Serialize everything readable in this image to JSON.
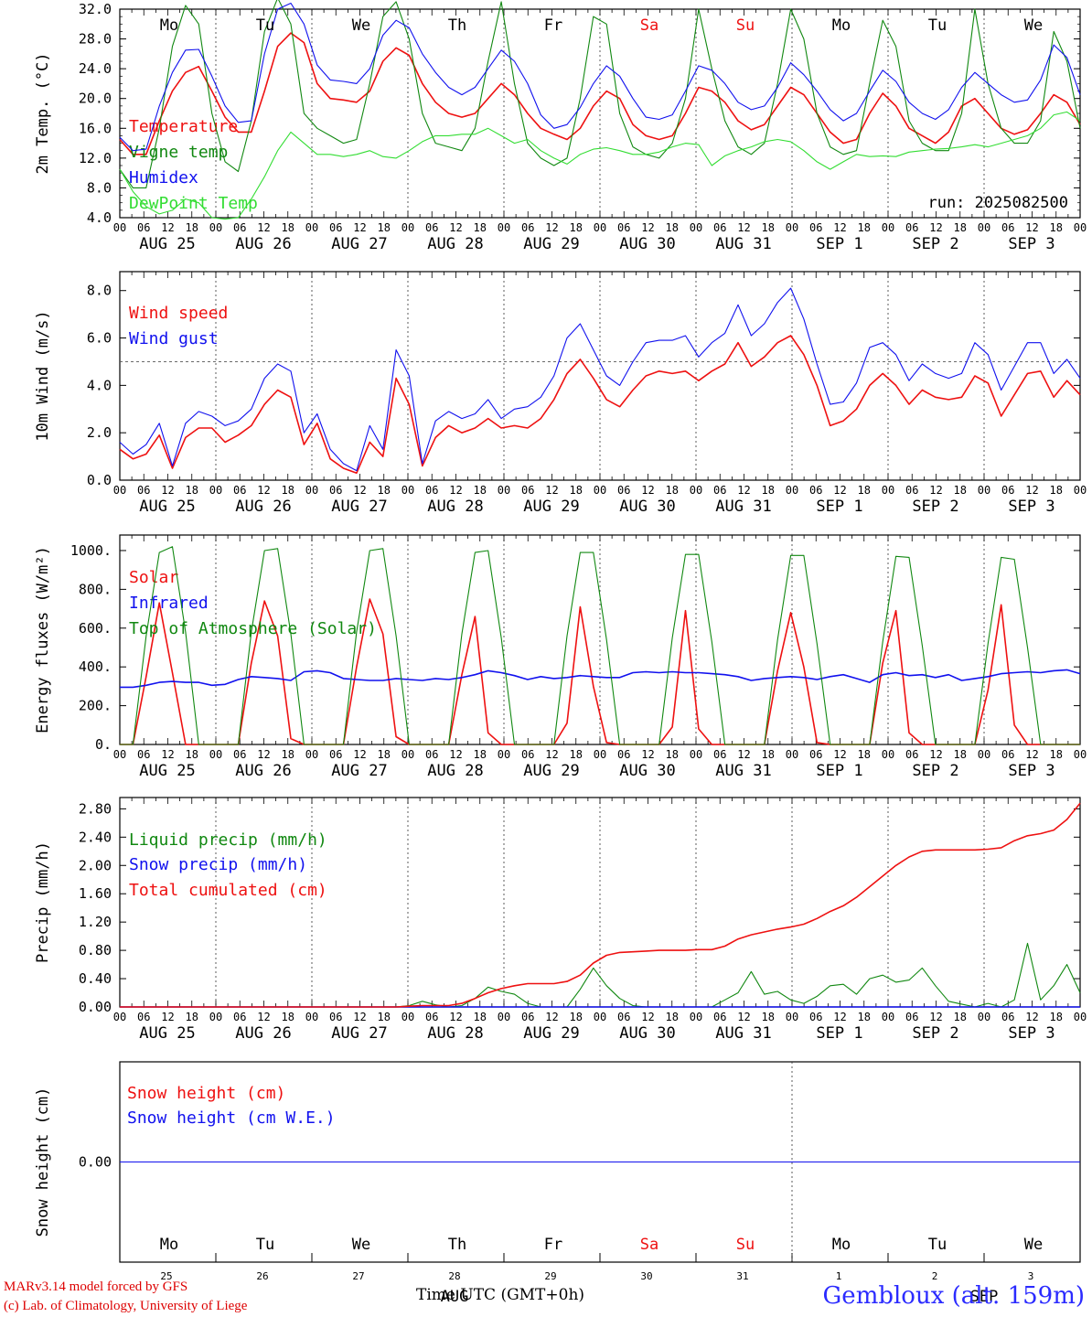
{
  "run_label": "run: 2025082500",
  "time_axis_title": "Time UTC (GMT+0h)",
  "credit_line1": "MARv3.14 model forced by GFS",
  "credit_line2": "(c) Lab. of Climatology, University of Liege",
  "station_label": "Gembloux (alt. 159m)",
  "hour_ticks": [
    "00",
    "06",
    "12",
    "18"
  ],
  "day_labels": [
    "AUG 25",
    "AUG 26",
    "AUG 27",
    "AUG 28",
    "AUG 29",
    "AUG 30",
    "AUG 31",
    "SEP  1",
    "SEP  2",
    "SEP  3"
  ],
  "weekdays": [
    "Mo",
    "Tu",
    "We",
    "Th",
    "Fr",
    "Sa",
    "Su",
    "Mo",
    "Tu",
    "We"
  ],
  "weekend_flags": [
    false,
    false,
    false,
    false,
    false,
    true,
    true,
    false,
    false,
    false
  ],
  "bottom_day_numbers": [
    "25",
    "26",
    "27",
    "28",
    "29",
    "30",
    "31",
    "1",
    "2",
    "3"
  ],
  "bottom_month_labels": [
    "AUG",
    "SEP"
  ],
  "colors": {
    "red": "#ee1111",
    "green": "#118811",
    "blue": "#1111ee",
    "lightgreen": "#33dd33",
    "gray": "#444444"
  },
  "chart_data": [
    {
      "type": "line",
      "ylabel": "2m Temp. (°C)",
      "ylim": [
        4,
        32
      ],
      "yticks": [
        "4.0",
        "8.0",
        "12.0",
        "16.0",
        "20.0",
        "24.0",
        "28.0",
        "32.0"
      ],
      "ytick_values": [
        4,
        8,
        12,
        16,
        20,
        24,
        28,
        32
      ],
      "x_unit": "hours since AUG 25 00 UTC (3-hourly)",
      "series": [
        {
          "name": "Temperature",
          "color": "red",
          "values": [
            14.5,
            12.5,
            12.5,
            17,
            21,
            23.5,
            24.3,
            21,
            17.5,
            15.5,
            15.5,
            21,
            27,
            28.8,
            27.5,
            22,
            20,
            19.8,
            19.5,
            21,
            25,
            26.8,
            25.8,
            22,
            19.5,
            18,
            17.5,
            18,
            20,
            22,
            20.5,
            18,
            16,
            15.2,
            14.5,
            16,
            19,
            21,
            20,
            16.5,
            15,
            14.5,
            15,
            18,
            21.5,
            21,
            19.5,
            17,
            15.8,
            16.5,
            19,
            21.5,
            20.5,
            18,
            15.5,
            14,
            14.5,
            18,
            20.7,
            19,
            16,
            15,
            14,
            15.5,
            19,
            20,
            18,
            16,
            15.2,
            15.8,
            18,
            20.5,
            19.5,
            16.5
          ]
        },
        {
          "name": "Vigne temp",
          "color": "green",
          "values": [
            10.5,
            8,
            8,
            16,
            27,
            32.5,
            30,
            18,
            11.5,
            10.2,
            17,
            29,
            33.5,
            30,
            18,
            16,
            15,
            14,
            14.5,
            22,
            31,
            33,
            28,
            18,
            14,
            13.5,
            13,
            16,
            25,
            33,
            22,
            14,
            12,
            11,
            12,
            20,
            31,
            30,
            18,
            13.5,
            12.5,
            12,
            14,
            20,
            32,
            24,
            17,
            13.5,
            12.5,
            14,
            22,
            32,
            28,
            18,
            13.5,
            12.5,
            13,
            22,
            30.5,
            27,
            17,
            14,
            13,
            13,
            18,
            32,
            22,
            16,
            14,
            14,
            17,
            29,
            25,
            16
          ]
        },
        {
          "name": "Humidex",
          "color": "blue",
          "values": [
            14.8,
            13,
            13.2,
            19,
            23.5,
            26.5,
            26.6,
            23,
            19,
            16.8,
            17,
            26,
            32,
            32.8,
            30,
            24.5,
            22.5,
            22.3,
            22,
            24,
            28.5,
            30.5,
            29.5,
            26,
            23.5,
            21.5,
            20.5,
            21.5,
            24,
            26.5,
            25,
            22,
            17.8,
            16,
            16.5,
            18.8,
            22,
            24.4,
            23,
            20,
            17.5,
            17.2,
            17.8,
            21,
            24.4,
            23.8,
            22,
            19.5,
            18.5,
            19,
            21.5,
            24.8,
            23.2,
            21,
            18.5,
            17,
            18,
            21,
            23.8,
            22.3,
            19.5,
            18,
            17.2,
            18.5,
            21.5,
            23.5,
            22,
            20.5,
            19.5,
            19.8,
            22.5,
            27.2,
            25.5,
            20.5
          ]
        },
        {
          "name": "DewPoint Temp",
          "color": "lightgreen",
          "values": [
            10.5,
            7.5,
            5.5,
            4.5,
            5,
            6.5,
            6,
            4,
            3.8,
            4,
            6.5,
            9.5,
            13,
            15.5,
            14,
            12.5,
            12.5,
            12.2,
            12.5,
            13,
            12.2,
            12,
            13,
            14.2,
            15,
            15,
            15.2,
            15.2,
            16,
            15,
            14,
            14.5,
            13,
            12,
            11.2,
            12.5,
            13.2,
            13.4,
            13,
            12.5,
            12.5,
            12.8,
            13.5,
            14,
            13.8,
            11,
            12.3,
            13,
            13.5,
            14.2,
            14.5,
            14.2,
            13,
            11.5,
            10.5,
            11.5,
            12.5,
            12.2,
            12.3,
            12.2,
            12.8,
            13,
            13.2,
            13.3,
            13.5,
            13.8,
            13.5,
            14,
            14.5,
            15,
            16,
            17.8,
            18.2,
            17
          ]
        }
      ]
    },
    {
      "type": "line",
      "ylabel": "10m Wind (m/s)",
      "ylim": [
        0,
        8.8
      ],
      "yticks": [
        "0.0",
        "2.0",
        "4.0",
        "6.0",
        "8.0"
      ],
      "ytick_values": [
        0,
        2,
        4,
        6,
        8
      ],
      "threshold": 5.0,
      "series": [
        {
          "name": "Wind speed",
          "color": "red",
          "values": [
            1.3,
            0.9,
            1.1,
            1.9,
            0.5,
            1.8,
            2.2,
            2.2,
            1.6,
            1.9,
            2.3,
            3.2,
            3.8,
            3.5,
            1.5,
            2.4,
            0.9,
            0.5,
            0.3,
            1.6,
            1,
            4.3,
            3.2,
            0.6,
            1.8,
            2.3,
            2,
            2.2,
            2.6,
            2.2,
            2.3,
            2.2,
            2.6,
            3.4,
            4.5,
            5.1,
            4.3,
            3.4,
            3.1,
            3.8,
            4.4,
            4.6,
            4.5,
            4.6,
            4.2,
            4.6,
            4.9,
            5.8,
            4.8,
            5.2,
            5.8,
            6.1,
            5.3,
            4,
            2.3,
            2.5,
            3,
            4,
            4.5,
            4,
            3.2,
            3.8,
            3.5,
            3.4,
            3.5,
            4.4,
            4.1,
            2.7,
            3.6,
            4.5,
            4.6,
            3.5,
            4.2,
            3.6
          ]
        },
        {
          "name": "Wind gust",
          "color": "blue",
          "values": [
            1.6,
            1.1,
            1.5,
            2.4,
            0.6,
            2.4,
            2.9,
            2.7,
            2.3,
            2.5,
            3,
            4.3,
            4.9,
            4.6,
            2,
            2.8,
            1.3,
            0.7,
            0.4,
            2.3,
            1.3,
            5.5,
            4.4,
            0.7,
            2.5,
            2.9,
            2.6,
            2.8,
            3.4,
            2.6,
            3,
            3.1,
            3.5,
            4.4,
            6,
            6.6,
            5.5,
            4.4,
            4,
            5,
            5.8,
            5.9,
            5.9,
            6.1,
            5.2,
            5.8,
            6.2,
            7.4,
            6.1,
            6.6,
            7.5,
            8.1,
            6.8,
            4.9,
            3.2,
            3.3,
            4.1,
            5.6,
            5.8,
            5.3,
            4.2,
            4.9,
            4.5,
            4.3,
            4.5,
            5.8,
            5.3,
            3.8,
            4.8,
            5.8,
            5.8,
            4.5,
            5.1,
            4.3
          ]
        }
      ]
    },
    {
      "type": "line",
      "ylabel": "Energy fluxes (W/m²)",
      "ylim": [
        0,
        1080
      ],
      "yticks": [
        "0.",
        "200.",
        "400.",
        "600.",
        "800.",
        "1000."
      ],
      "ytick_values": [
        0,
        200,
        400,
        600,
        800,
        1000
      ],
      "series": [
        {
          "name": "Solar",
          "color": "red",
          "values": [
            0,
            0,
            350,
            730,
            370,
            0,
            0,
            0,
            0,
            0,
            420,
            740,
            560,
            30,
            0,
            0,
            0,
            0,
            400,
            750,
            570,
            40,
            0,
            0,
            0,
            0,
            360,
            660,
            60,
            0,
            0,
            0,
            0,
            0,
            110,
            710,
            300,
            10,
            0,
            0,
            0,
            0,
            90,
            690,
            80,
            0,
            0,
            0,
            0,
            0,
            380,
            680,
            400,
            10,
            0,
            0,
            0,
            0,
            420,
            690,
            60,
            0,
            0,
            0,
            0,
            0,
            280,
            720,
            100,
            0,
            0,
            0,
            0,
            0
          ]
        },
        {
          "name": "Infrared",
          "color": "blue",
          "values": [
            295,
            295,
            305,
            320,
            325,
            320,
            320,
            305,
            310,
            335,
            350,
            345,
            340,
            330,
            375,
            380,
            370,
            340,
            335,
            330,
            330,
            340,
            335,
            330,
            340,
            335,
            345,
            360,
            380,
            370,
            355,
            335,
            350,
            340,
            345,
            355,
            350,
            345,
            345,
            370,
            375,
            370,
            375,
            370,
            370,
            365,
            360,
            350,
            330,
            340,
            345,
            350,
            345,
            335,
            350,
            360,
            340,
            320,
            360,
            370,
            355,
            360,
            345,
            360,
            330,
            340,
            350,
            365,
            370,
            375,
            370,
            380,
            385,
            365
          ]
        },
        {
          "name": "Top of Atmosphere (Solar)",
          "color": "green",
          "values": [
            0,
            0,
            560,
            990,
            1020,
            580,
            0,
            0,
            0,
            0,
            580,
            1000,
            1010,
            570,
            0,
            0,
            0,
            0,
            580,
            1000,
            1010,
            560,
            0,
            0,
            0,
            0,
            570,
            990,
            1000,
            550,
            0,
            0,
            0,
            0,
            560,
            990,
            990,
            540,
            0,
            0,
            0,
            0,
            550,
            980,
            980,
            530,
            0,
            0,
            0,
            0,
            540,
            975,
            975,
            520,
            0,
            0,
            0,
            0,
            530,
            970,
            965,
            510,
            0,
            0,
            0,
            0,
            520,
            965,
            955,
            500,
            0,
            0,
            0,
            0
          ]
        }
      ]
    },
    {
      "type": "line",
      "ylabel": "Precip (mm/h)",
      "ylim": [
        0,
        2.96
      ],
      "yticks": [
        "0.00",
        "0.40",
        "0.80",
        "1.20",
        "1.60",
        "2.00",
        "2.40",
        "2.80"
      ],
      "ytick_values": [
        0,
        0.4,
        0.8,
        1.2,
        1.6,
        2,
        2.4,
        2.8
      ],
      "series": [
        {
          "name": "Liquid precip (mm/h)",
          "color": "green",
          "values": [
            0,
            0,
            0,
            0,
            0,
            0,
            0,
            0,
            0,
            0,
            0,
            0,
            0,
            0,
            0,
            0,
            0,
            0,
            0,
            0,
            0,
            0,
            0.02,
            0.08,
            0.03,
            0,
            0.02,
            0.12,
            0.28,
            0.22,
            0.18,
            0.05,
            0,
            0,
            0,
            0.25,
            0.55,
            0.3,
            0.12,
            0.02,
            0,
            0,
            0,
            0,
            0,
            0,
            0.1,
            0.2,
            0.5,
            0.18,
            0.22,
            0.1,
            0.05,
            0.15,
            0.3,
            0.32,
            0.18,
            0.4,
            0.45,
            0.35,
            0.38,
            0.55,
            0.3,
            0.08,
            0.04,
            0,
            0.05,
            0,
            0.1,
            0.9,
            0.1,
            0.3,
            0.6,
            0.2
          ]
        },
        {
          "name": "Snow precip (mm/h)",
          "color": "blue",
          "values": [
            0,
            0,
            0,
            0,
            0,
            0,
            0,
            0,
            0,
            0,
            0,
            0,
            0,
            0,
            0,
            0,
            0,
            0,
            0,
            0,
            0,
            0,
            0,
            0,
            0,
            0,
            0,
            0,
            0,
            0,
            0,
            0,
            0,
            0,
            0,
            0,
            0,
            0,
            0,
            0,
            0,
            0,
            0,
            0,
            0,
            0,
            0,
            0,
            0,
            0,
            0,
            0,
            0,
            0,
            0,
            0,
            0,
            0,
            0,
            0,
            0,
            0,
            0,
            0,
            0,
            0,
            0,
            0,
            0,
            0,
            0,
            0,
            0,
            0
          ]
        },
        {
          "name": "Total cumulated (cm)",
          "color": "red",
          "values": [
            0,
            0,
            0,
            0,
            0,
            0,
            0,
            0,
            0,
            0,
            0,
            0,
            0,
            0,
            0,
            0,
            0,
            0,
            0,
            0,
            0,
            0,
            0.01,
            0.02,
            0.02,
            0.02,
            0.05,
            0.12,
            0.2,
            0.26,
            0.3,
            0.33,
            0.33,
            0.33,
            0.36,
            0.45,
            0.62,
            0.73,
            0.77,
            0.78,
            0.79,
            0.8,
            0.8,
            0.8,
            0.81,
            0.81,
            0.86,
            0.96,
            1.02,
            1.06,
            1.1,
            1.13,
            1.17,
            1.25,
            1.35,
            1.43,
            1.55,
            1.7,
            1.85,
            2,
            2.12,
            2.2,
            2.22,
            2.22,
            2.22,
            2.22,
            2.23,
            2.25,
            2.35,
            2.42,
            2.45,
            2.5,
            2.65,
            2.88
          ]
        }
      ]
    },
    {
      "type": "line",
      "ylabel": "Snow height (cm)",
      "ylim": [
        -1,
        1
      ],
      "yticks": [
        "0.00"
      ],
      "ytick_values": [
        0
      ],
      "series": [
        {
          "name": "Snow height (cm)",
          "color": "red",
          "values": [
            0,
            0
          ]
        },
        {
          "name": "Snow height (cm W.E.)",
          "color": "blue",
          "values": [
            0,
            0
          ]
        }
      ]
    }
  ]
}
